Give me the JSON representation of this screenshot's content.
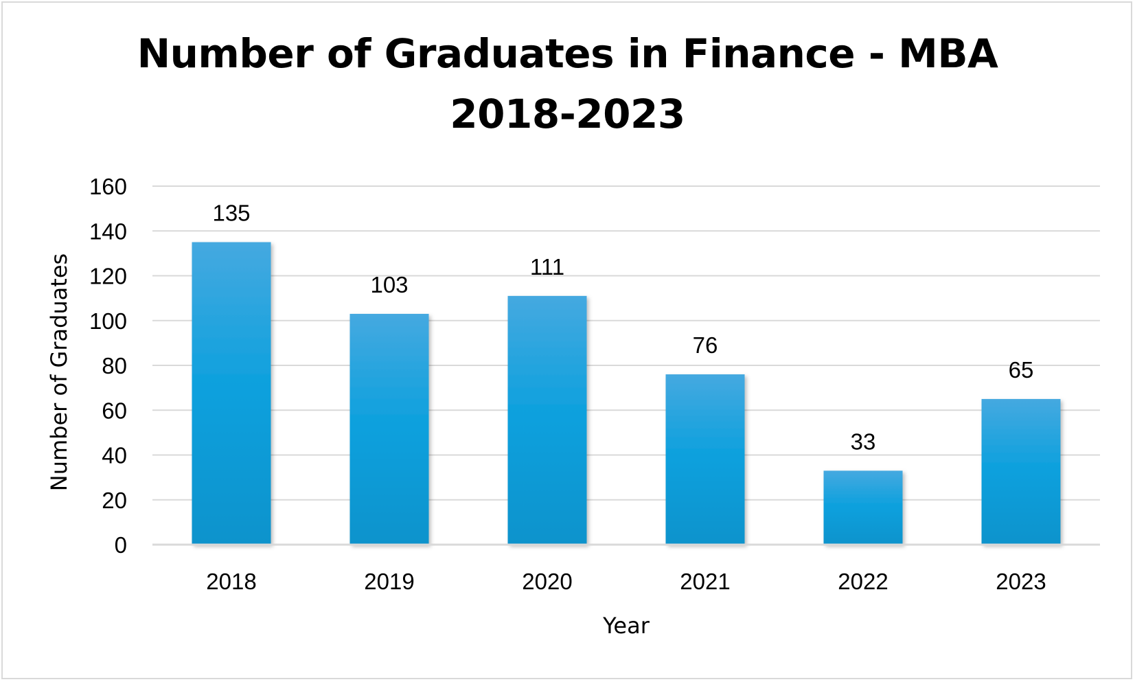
{
  "chart_data": {
    "type": "bar",
    "title_line1": "Number of Graduates in Finance - MBA",
    "title_line2": "2018-2023",
    "categories": [
      "2018",
      "2019",
      "2020",
      "2021",
      "2022",
      "2023"
    ],
    "values": [
      135,
      103,
      111,
      76,
      33,
      65
    ],
    "xlabel": "Year",
    "ylabel": "Number of Graduates",
    "ylim": [
      0,
      160
    ],
    "yticks": [
      0,
      20,
      40,
      60,
      80,
      100,
      120,
      140,
      160
    ],
    "grid": true,
    "legend": "none",
    "data_labels": true,
    "colors": {
      "bar_top": "#45a9e0",
      "bar_mid": "#0aa0dd",
      "bar_bottom": "#0b93cc",
      "grid": "#d9d9d9"
    }
  }
}
